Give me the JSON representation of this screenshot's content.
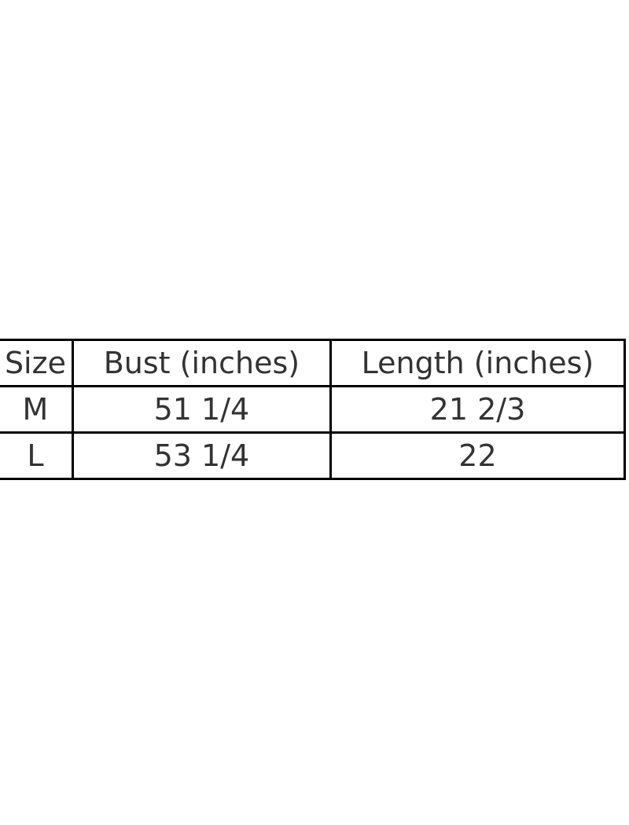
{
  "table": {
    "headers": [
      "Size",
      "Bust (inches)",
      "Length (inches)"
    ],
    "rows": [
      [
        "M",
        "51 1/4",
        "21 2/3"
      ],
      [
        "L",
        "53 1/4",
        "22"
      ]
    ]
  }
}
